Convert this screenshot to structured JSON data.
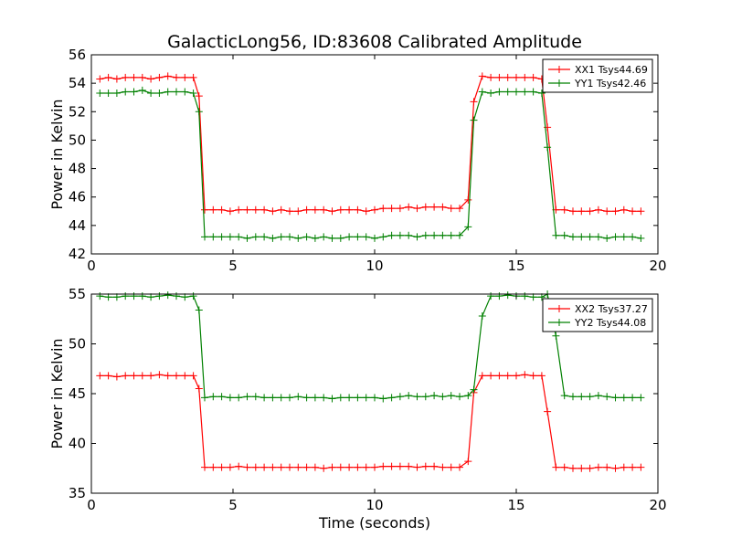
{
  "title": "GalacticLong56, ID:83608 Calibrated Amplitude",
  "xlabel": "Time (seconds)",
  "chart_data": [
    {
      "type": "line",
      "title": "GalacticLong56, ID:83608 Calibrated Amplitude",
      "xlabel": "",
      "ylabel": "Power in Kelvin",
      "xlim": [
        0,
        20
      ],
      "ylim": [
        42,
        56
      ],
      "xticks": [
        0,
        5,
        10,
        15,
        20
      ],
      "yticks": [
        42,
        44,
        46,
        48,
        50,
        52,
        54,
        56
      ],
      "grid": false,
      "legend_position": "top-right",
      "x": [
        0.3,
        0.6,
        0.9,
        1.2,
        1.5,
        1.8,
        2.1,
        2.4,
        2.7,
        3.0,
        3.3,
        3.6,
        3.8,
        4.0,
        4.3,
        4.6,
        4.9,
        5.2,
        5.5,
        5.8,
        6.1,
        6.4,
        6.7,
        7.0,
        7.3,
        7.6,
        7.9,
        8.2,
        8.5,
        8.8,
        9.1,
        9.4,
        9.7,
        10.0,
        10.3,
        10.6,
        10.9,
        11.2,
        11.5,
        11.8,
        12.1,
        12.4,
        12.7,
        13.0,
        13.3,
        13.5,
        13.8,
        14.1,
        14.4,
        14.7,
        15.0,
        15.3,
        15.6,
        15.9,
        16.1,
        16.4,
        16.7,
        17.0,
        17.3,
        17.6,
        17.9,
        18.2,
        18.5,
        18.8,
        19.1,
        19.4
      ],
      "series": [
        {
          "name": "XX1 Tsys44.69",
          "color": "#ff0000",
          "values": [
            54.3,
            54.4,
            54.3,
            54.4,
            54.4,
            54.4,
            54.3,
            54.4,
            54.5,
            54.4,
            54.4,
            54.4,
            53.1,
            45.1,
            45.1,
            45.1,
            45.0,
            45.1,
            45.1,
            45.1,
            45.1,
            45.0,
            45.1,
            45.0,
            45.0,
            45.1,
            45.1,
            45.1,
            45.0,
            45.1,
            45.1,
            45.1,
            45.0,
            45.1,
            45.2,
            45.2,
            45.2,
            45.3,
            45.2,
            45.3,
            45.3,
            45.3,
            45.2,
            45.2,
            45.8,
            52.7,
            54.5,
            54.4,
            54.4,
            54.4,
            54.4,
            54.4,
            54.4,
            54.3,
            50.9,
            45.1,
            45.1,
            45.0,
            45.0,
            45.0,
            45.1,
            45.0,
            45.0,
            45.1,
            45.0,
            45.0
          ]
        },
        {
          "name": "YY1 Tsys42.46",
          "color": "#008000",
          "values": [
            53.3,
            53.3,
            53.3,
            53.4,
            53.4,
            53.5,
            53.3,
            53.3,
            53.4,
            53.4,
            53.4,
            53.3,
            52.0,
            43.2,
            43.2,
            43.2,
            43.2,
            43.2,
            43.1,
            43.2,
            43.2,
            43.1,
            43.2,
            43.2,
            43.1,
            43.2,
            43.1,
            43.2,
            43.1,
            43.1,
            43.2,
            43.2,
            43.2,
            43.1,
            43.2,
            43.3,
            43.3,
            43.3,
            43.2,
            43.3,
            43.3,
            43.3,
            43.3,
            43.3,
            43.9,
            51.4,
            53.4,
            53.3,
            53.4,
            53.4,
            53.4,
            53.4,
            53.4,
            53.3,
            49.5,
            43.3,
            43.3,
            43.2,
            43.2,
            43.2,
            43.2,
            43.1,
            43.2,
            43.2,
            43.2,
            43.1
          ]
        }
      ]
    },
    {
      "type": "line",
      "title": "",
      "xlabel": "Time (seconds)",
      "ylabel": "Power in Kelvin",
      "xlim": [
        0,
        20
      ],
      "ylim": [
        35,
        55
      ],
      "xticks": [
        0,
        5,
        10,
        15,
        20
      ],
      "yticks": [
        35,
        40,
        45,
        50,
        55
      ],
      "grid": false,
      "legend_position": "top-right",
      "x": [
        0.3,
        0.6,
        0.9,
        1.2,
        1.5,
        1.8,
        2.1,
        2.4,
        2.7,
        3.0,
        3.3,
        3.6,
        3.8,
        4.0,
        4.3,
        4.6,
        4.9,
        5.2,
        5.5,
        5.8,
        6.1,
        6.4,
        6.7,
        7.0,
        7.3,
        7.6,
        7.9,
        8.2,
        8.5,
        8.8,
        9.1,
        9.4,
        9.7,
        10.0,
        10.3,
        10.6,
        10.9,
        11.2,
        11.5,
        11.8,
        12.1,
        12.4,
        12.7,
        13.0,
        13.3,
        13.5,
        13.8,
        14.1,
        14.4,
        14.7,
        15.0,
        15.3,
        15.6,
        15.9,
        16.1,
        16.4,
        16.7,
        17.0,
        17.3,
        17.6,
        17.9,
        18.2,
        18.5,
        18.8,
        19.1,
        19.4
      ],
      "series": [
        {
          "name": "XX2 Tsys37.27",
          "color": "#ff0000",
          "values": [
            46.8,
            46.8,
            46.7,
            46.8,
            46.8,
            46.8,
            46.8,
            46.9,
            46.8,
            46.8,
            46.8,
            46.8,
            45.5,
            37.6,
            37.6,
            37.6,
            37.6,
            37.7,
            37.6,
            37.6,
            37.6,
            37.6,
            37.6,
            37.6,
            37.6,
            37.6,
            37.6,
            37.5,
            37.6,
            37.6,
            37.6,
            37.6,
            37.6,
            37.6,
            37.7,
            37.7,
            37.7,
            37.7,
            37.6,
            37.7,
            37.7,
            37.6,
            37.6,
            37.6,
            38.2,
            45.1,
            46.8,
            46.8,
            46.8,
            46.8,
            46.8,
            46.9,
            46.8,
            46.8,
            43.2,
            37.6,
            37.6,
            37.5,
            37.5,
            37.5,
            37.6,
            37.6,
            37.5,
            37.6,
            37.6,
            37.6
          ]
        },
        {
          "name": "YY2 Tsys44.08",
          "color": "#008000",
          "values": [
            54.8,
            54.7,
            54.7,
            54.8,
            54.8,
            54.8,
            54.7,
            54.8,
            54.9,
            54.8,
            54.7,
            54.8,
            53.4,
            44.6,
            44.7,
            44.7,
            44.6,
            44.6,
            44.7,
            44.7,
            44.6,
            44.6,
            44.6,
            44.6,
            44.7,
            44.6,
            44.6,
            44.6,
            44.5,
            44.6,
            44.6,
            44.6,
            44.6,
            44.6,
            44.5,
            44.6,
            44.7,
            44.8,
            44.7,
            44.7,
            44.8,
            44.7,
            44.8,
            44.7,
            44.8,
            45.4,
            52.8,
            54.8,
            54.8,
            54.9,
            54.8,
            54.8,
            54.7,
            54.7,
            55.0,
            50.8,
            44.8,
            44.7,
            44.7,
            44.7,
            44.8,
            44.7,
            44.6,
            44.6,
            44.6,
            44.6
          ]
        }
      ]
    }
  ]
}
